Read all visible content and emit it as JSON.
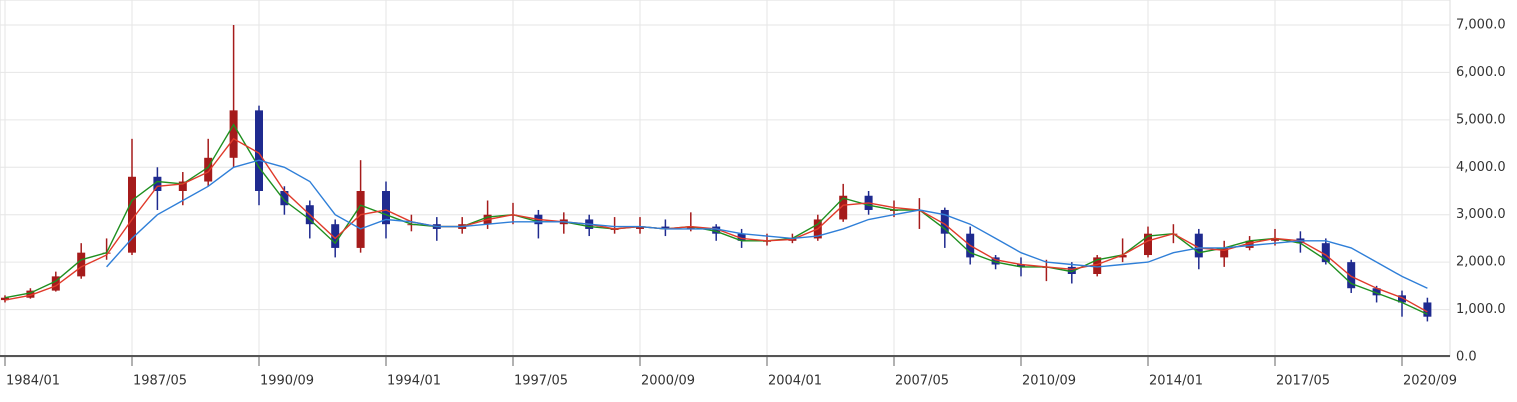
{
  "chart_data": {
    "type": "candlestick",
    "categories": [
      "1984/01",
      null,
      null,
      null,
      null,
      "1987/05",
      null,
      null,
      null,
      null,
      "1990/09",
      null,
      null,
      null,
      null,
      "1994/01",
      null,
      null,
      null,
      null,
      "1997/05",
      null,
      null,
      null,
      null,
      "2000/09",
      null,
      null,
      null,
      null,
      "2004/01",
      null,
      null,
      null,
      null,
      "2007/05",
      null,
      null,
      null,
      null,
      "2010/09",
      null,
      null,
      null,
      null,
      "2014/01",
      null,
      null,
      null,
      null,
      "2017/05",
      null,
      null,
      null,
      null,
      "2020/09",
      null
    ],
    "candles": {
      "up_color": "#a51b1b",
      "down_color": "#1f2a8f",
      "open": [
        1200,
        1250,
        1400,
        1700,
        2200,
        2200,
        3800,
        3500,
        3700,
        4200,
        5200,
        3500,
        3200,
        2800,
        2300,
        3500,
        2800,
        2800,
        2700,
        2800,
        3000,
        3000,
        2800,
        2900,
        2700,
        2700,
        2750,
        2700,
        2750,
        2600,
        2450,
        2450,
        2500,
        2900,
        3400,
        3100,
        3100,
        3100,
        2600,
        2100,
        1950,
        1900,
        1900,
        1750,
        2100,
        2150,
        2600,
        2600,
        2100,
        2300,
        2450,
        2500,
        2400,
        2000,
        1450,
        1300,
        1150
      ],
      "high": [
        1300,
        1450,
        1800,
        2400,
        2500,
        4600,
        4000,
        3900,
        4600,
        7000,
        5300,
        3600,
        3300,
        2900,
        4150,
        3700,
        3000,
        2950,
        2950,
        3300,
        3250,
        3100,
        3050,
        3000,
        2950,
        2950,
        2900,
        3050,
        2800,
        2700,
        2600,
        2600,
        3000,
        3650,
        3500,
        3300,
        3350,
        3150,
        2750,
        2150,
        2100,
        2050,
        2000,
        2150,
        2500,
        2750,
        2800,
        2700,
        2450,
        2550,
        2700,
        2650,
        2500,
        2050,
        1500,
        1400,
        1250
      ],
      "low": [
        1150,
        1230,
        1380,
        1650,
        2050,
        2150,
        3100,
        3200,
        3600,
        4000,
        3200,
        3000,
        2500,
        2100,
        2200,
        2500,
        2650,
        2450,
        2600,
        2700,
        2800,
        2500,
        2600,
        2550,
        2600,
        2600,
        2550,
        2650,
        2450,
        2300,
        2350,
        2400,
        2450,
        2850,
        3000,
        2950,
        2700,
        2300,
        1950,
        1850,
        1700,
        1600,
        1550,
        1700,
        2000,
        2100,
        2400,
        1850,
        1900,
        2250,
        2350,
        2200,
        1950,
        1350,
        1150,
        850,
        750
      ],
      "close": [
        1250,
        1400,
        1700,
        2200,
        2200,
        3800,
        3500,
        3700,
        4200,
        5200,
        3500,
        3200,
        2800,
        2300,
        3500,
        2800,
        2800,
        2700,
        2800,
        3000,
        3000,
        2800,
        2900,
        2700,
        2700,
        2750,
        2700,
        2750,
        2600,
        2450,
        2450,
        2500,
        2900,
        3400,
        3100,
        3100,
        3100,
        2600,
        2100,
        1950,
        1900,
        1900,
        1750,
        2100,
        2150,
        2600,
        2600,
        2100,
        2300,
        2450,
        2500,
        2400,
        2000,
        1450,
        1300,
        1150,
        850
      ]
    },
    "moving_averages": [
      {
        "color": "#1f8f1f",
        "values": [
          1250,
          1350,
          1600,
          2050,
          2200,
          3300,
          3700,
          3650,
          4000,
          4900,
          4000,
          3300,
          2900,
          2400,
          3200,
          3000,
          2800,
          2750,
          2750,
          2950,
          3000,
          2850,
          2850,
          2750,
          2700,
          2750,
          2700,
          2750,
          2650,
          2450,
          2450,
          2500,
          2800,
          3350,
          3200,
          3100,
          3100,
          2700,
          2200,
          2000,
          1900,
          1900,
          1800,
          2050,
          2150,
          2550,
          2600,
          2200,
          2300,
          2450,
          2500,
          2400,
          2050,
          1550,
          1350,
          1150,
          900
        ]
      },
      {
        "color": "#e03a2a",
        "values": [
          1200,
          1300,
          1500,
          1900,
          2150,
          2900,
          3600,
          3650,
          3900,
          4600,
          4300,
          3500,
          3000,
          2500,
          3000,
          3100,
          2850,
          2750,
          2750,
          2900,
          3000,
          2900,
          2850,
          2800,
          2700,
          2750,
          2700,
          2750,
          2700,
          2500,
          2450,
          2480,
          2700,
          3200,
          3250,
          3150,
          3100,
          2800,
          2350,
          2050,
          1950,
          1900,
          1850,
          1950,
          2150,
          2450,
          2600,
          2300,
          2250,
          2400,
          2500,
          2450,
          2150,
          1700,
          1450,
          1250,
          950
        ]
      },
      {
        "color": "#2f7fd8",
        "values": [
          null,
          null,
          null,
          null,
          1900,
          2500,
          3000,
          3300,
          3600,
          4000,
          4150,
          4000,
          3700,
          3000,
          2700,
          2900,
          2850,
          2750,
          2750,
          2800,
          2850,
          2850,
          2850,
          2800,
          2750,
          2750,
          2700,
          2700,
          2700,
          2600,
          2550,
          2500,
          2550,
          2700,
          2900,
          3000,
          3100,
          3000,
          2800,
          2500,
          2200,
          2000,
          1950,
          1900,
          1950,
          2000,
          2200,
          2300,
          2300,
          2350,
          2400,
          2450,
          2450,
          2300,
          2000,
          1700,
          1450
        ]
      }
    ],
    "ylim": [
      0,
      7000
    ],
    "yticks": [
      {
        "value": 0,
        "label": "0.0"
      },
      {
        "value": 1000,
        "label": "1,000.0"
      },
      {
        "value": 2000,
        "label": "2,000.0"
      },
      {
        "value": 3000,
        "label": "3,000.0"
      },
      {
        "value": 4000,
        "label": "4,000.0"
      },
      {
        "value": 5000,
        "label": "5,000.0"
      },
      {
        "value": 6000,
        "label": "6,000.0"
      },
      {
        "value": 7000,
        "label": "7,000.0"
      }
    ],
    "grid": true
  }
}
